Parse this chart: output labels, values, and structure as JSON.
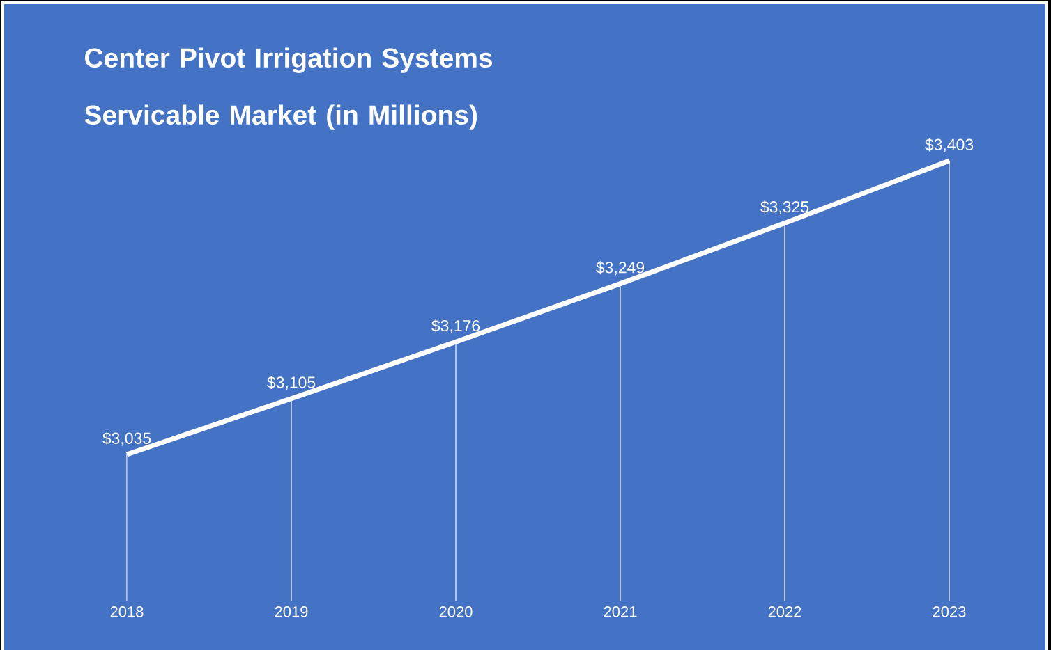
{
  "chart_data": {
    "type": "line",
    "title": "Center Pivot Irrigation Systems Servicable Market (in Millions)",
    "categories": [
      "2018",
      "2019",
      "2020",
      "2021",
      "2022",
      "2023"
    ],
    "series": [
      {
        "color": "#ffffff",
        "values": [
          3035,
          3105,
          3176,
          3249,
          3325,
          3403
        ],
        "value_labels": [
          "$3,035",
          "$3,105",
          "$3,176",
          "$3,249",
          "$3,325",
          "$3,403"
        ]
      }
    ],
    "line_style": "solid",
    "grid": "x",
    "tick_labels": "x"
  }
}
